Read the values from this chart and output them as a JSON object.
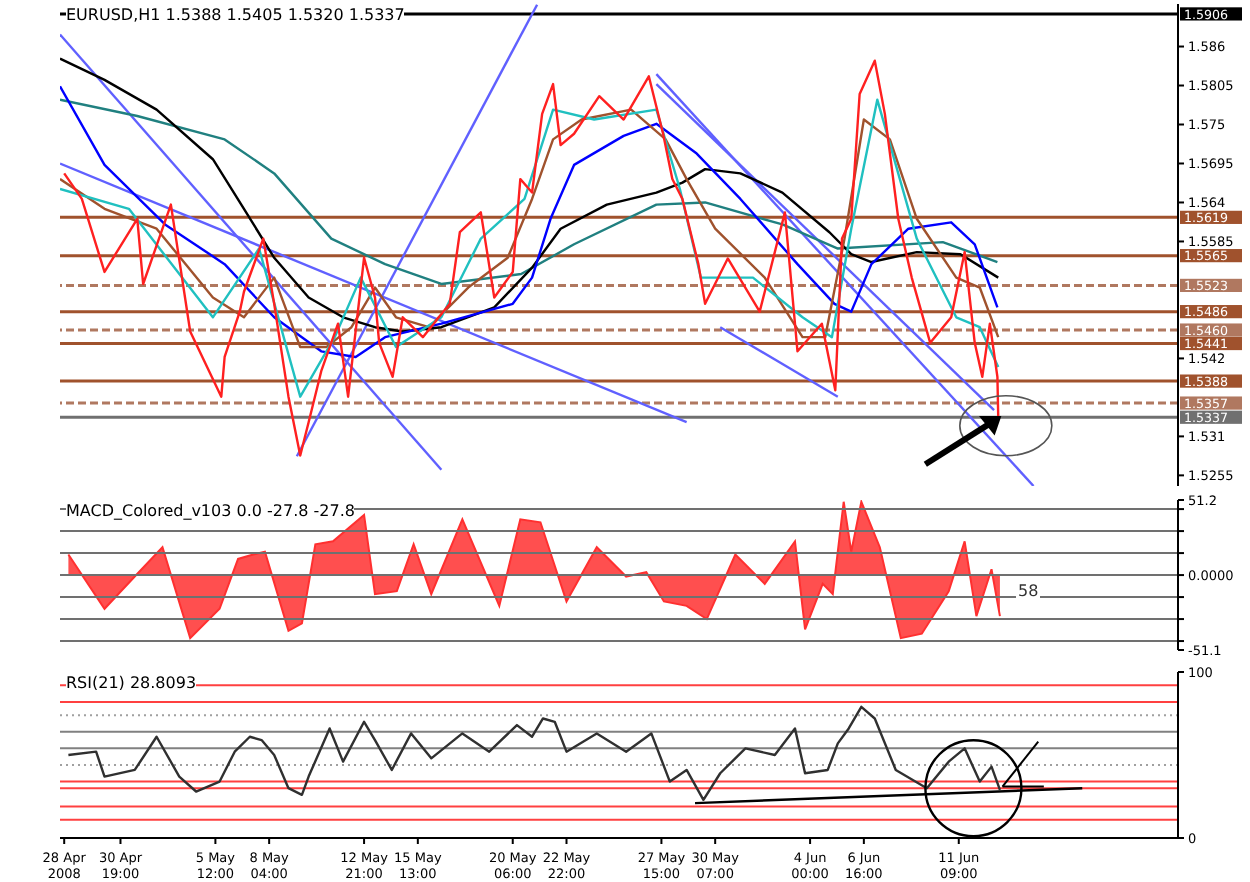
{
  "chart_data": [
    {
      "type": "line",
      "title": "EURUSD,H1 1.5388 1.5405 1.5320 1.5337",
      "xlim": [
        "2008-04-27T19:00",
        "2008-06-22T06:00"
      ],
      "ylim": [
        1.524,
        1.592
      ],
      "yticks": [
        1.5255,
        1.531,
        1.542,
        1.5585,
        1.564,
        1.5695,
        1.575,
        1.5805,
        1.586
      ],
      "tick_labels": "y",
      "ref_lines": [
        {
          "axis": "y",
          "value": 1.5906,
          "label": "1.5906",
          "color": "#000000",
          "line_style": "solid"
        },
        {
          "axis": "y",
          "value": 1.5619,
          "label": "1.5619",
          "color": "#a0522d",
          "line_style": "solid"
        },
        {
          "axis": "y",
          "value": 1.5565,
          "label": "1.5565",
          "color": "#a0522d",
          "line_style": "solid"
        },
        {
          "axis": "y",
          "value": 1.5523,
          "label": "1.5523",
          "color": "#b07860",
          "line_style": "dashed"
        },
        {
          "axis": "y",
          "value": 1.5486,
          "label": "1.5486",
          "color": "#a0522d",
          "line_style": "solid"
        },
        {
          "axis": "y",
          "value": 1.546,
          "label": "1.5460",
          "color": "#b07860",
          "line_style": "dashed"
        },
        {
          "axis": "y",
          "value": 1.5441,
          "label": "1.5441",
          "color": "#a0522d",
          "line_style": "solid"
        },
        {
          "axis": "y",
          "value": 1.5388,
          "label": "1.5388",
          "color": "#a0522d",
          "line_style": "solid"
        },
        {
          "axis": "y",
          "value": 1.5357,
          "label": "1.5357",
          "color": "#b07860",
          "line_style": "dashed"
        },
        {
          "axis": "y",
          "value": 1.5337,
          "label": "1.5337",
          "color": "#707070",
          "line_style": "solid"
        }
      ],
      "series": [
        {
          "color": "#6060ff",
          "x": [
            "2008-04-27T19:00",
            "2008-05-16T17:00"
          ],
          "values": [
            1.5877,
            1.5263
          ]
        },
        {
          "color": "#6060ff",
          "x": [
            "2008-04-27T19:00",
            "2008-05-28T21:00"
          ],
          "values": [
            1.5695,
            1.533
          ]
        },
        {
          "color": "#6060ff",
          "x": [
            "2008-05-09T13:00",
            "2008-05-21T11:00"
          ],
          "values": [
            1.5282,
            1.5919
          ]
        },
        {
          "color": "#6060ff",
          "x": [
            "2008-05-27T09:00",
            "2008-06-15T02:00"
          ],
          "values": [
            1.5821,
            1.524
          ]
        },
        {
          "color": "#6060ff",
          "x": [
            "2008-05-27T09:00",
            "2008-06-13T03:00"
          ],
          "values": [
            1.5807,
            1.5347
          ]
        },
        {
          "color": "#6060ff",
          "x": [
            "2008-05-30T13:00",
            "2008-06-05T09:00"
          ],
          "values": [
            1.5464,
            1.5366
          ]
        },
        {
          "color": "#208080",
          "x": [
            "2008-04-27T19:00",
            "2008-05-01T15:00",
            "2008-05-05T23:00",
            "2008-05-08T10:00",
            "2008-05-11T06:00",
            "2008-05-13T22:00",
            "2008-05-16T17:00",
            "2008-05-20T16:00",
            "2008-05-23T07:00",
            "2008-05-27T09:00",
            "2008-05-29T19:00",
            "2008-06-02T15:00",
            "2008-06-05T09:00",
            "2008-06-10T14:00",
            "2008-06-13T07:00"
          ],
          "values": [
            1.5785,
            1.5762,
            1.5729,
            1.5681,
            1.5589,
            1.5553,
            1.5525,
            1.5539,
            1.5581,
            1.5637,
            1.564,
            1.5609,
            1.5575,
            1.5584,
            1.5556
          ]
        },
        {
          "color": "#000000",
          "x": [
            "2008-04-27T19:00",
            "2008-04-30T00:00",
            "2008-05-02T14:00",
            "2008-05-05T09:00",
            "2008-05-06T22:00",
            "2008-05-08T10:00",
            "2008-05-10T03:00",
            "2008-05-11T20:00",
            "2008-05-13T10:00",
            "2008-05-14T19:00",
            "2008-05-16T17:00",
            "2008-05-19T08:00",
            "2008-05-21T05:00",
            "2008-05-22T15:00",
            "2008-05-24T22:00",
            "2008-05-27T09:00",
            "2008-05-28T16:00",
            "2008-05-29T19:00",
            "2008-05-31T13:00",
            "2008-06-02T15:00",
            "2008-06-04T23:00",
            "2008-06-06T01:00",
            "2008-06-07T01:00",
            "2008-06-09T07:00",
            "2008-06-11T11:00",
            "2008-06-13T08:00"
          ],
          "values": [
            1.5843,
            1.5813,
            1.5771,
            1.5701,
            1.5631,
            1.5562,
            1.5506,
            1.5478,
            1.5464,
            1.5458,
            1.5464,
            1.5492,
            1.5548,
            1.5603,
            1.5637,
            1.5654,
            1.5668,
            1.5687,
            1.5681,
            1.5654,
            1.5598,
            1.5567,
            1.5556,
            1.557,
            1.5567,
            1.5534
          ]
        },
        {
          "color": "#0000ff",
          "x": [
            "2008-04-27T19:00",
            "2008-04-30T00:00",
            "2008-05-03T00:00",
            "2008-05-05T23:00",
            "2008-05-08T10:00",
            "2008-05-10T18:00",
            "2008-05-12T11:00",
            "2008-05-13T22:00",
            "2008-05-16T17:00",
            "2008-05-20T06:00",
            "2008-05-21T05:00",
            "2008-05-22T03:00",
            "2008-05-23T07:00",
            "2008-05-25T18:00",
            "2008-05-27T09:00",
            "2008-05-29T09:00",
            "2008-05-31T13:00",
            "2008-06-03T09:00",
            "2008-06-05T05:00",
            "2008-06-06T01:00",
            "2008-06-07T01:00",
            "2008-06-08T21:00",
            "2008-06-11T00:00",
            "2008-06-12T04:00",
            "2008-06-13T07:00"
          ],
          "values": [
            1.5804,
            1.5693,
            1.5609,
            1.5553,
            1.5478,
            1.543,
            1.5422,
            1.545,
            1.5469,
            1.5497,
            1.5534,
            1.5617,
            1.5693,
            1.5734,
            1.5751,
            1.5709,
            1.5645,
            1.5553,
            1.5497,
            1.5486,
            1.5553,
            1.5603,
            1.5612,
            1.5581,
            1.5492
          ]
        },
        {
          "color": "#a0522d",
          "x": [
            "2008-04-27T19:00",
            "2008-04-30T00:00",
            "2008-05-02T14:00",
            "2008-05-05T09:00",
            "2008-05-06T22:00",
            "2008-05-08T10:00",
            "2008-05-09T17:00",
            "2008-05-11T00:00",
            "2008-05-12T06:00",
            "2008-05-13T10:00",
            "2008-05-14T11:00",
            "2008-05-16T02:00",
            "2008-05-18T01:00",
            "2008-05-20T00:00",
            "2008-05-21T05:00",
            "2008-05-22T06:00",
            "2008-05-23T16:00",
            "2008-05-26T03:00",
            "2008-05-27T20:00",
            "2008-05-28T21:00",
            "2008-05-30T07:00",
            "2008-06-01T18:00",
            "2008-06-03T15:00",
            "2008-06-04T18:00",
            "2008-06-05T17:00",
            "2008-06-06T16:00",
            "2008-06-07T23:00",
            "2008-06-09T07:00",
            "2008-06-11T06:00",
            "2008-06-12T10:00",
            "2008-06-13T08:00"
          ],
          "values": [
            1.5673,
            1.5631,
            1.5603,
            1.5506,
            1.5478,
            1.5534,
            1.5436,
            1.5436,
            1.5464,
            1.552,
            1.5478,
            1.5464,
            1.552,
            1.5562,
            1.5645,
            1.5729,
            1.5757,
            1.5771,
            1.5729,
            1.5673,
            1.5603,
            1.5534,
            1.545,
            1.545,
            1.5589,
            1.5757,
            1.5729,
            1.5617,
            1.5534,
            1.552,
            1.545
          ]
        },
        {
          "color": "#20c0c0",
          "x": [
            "2008-04-27T19:00",
            "2008-05-01T05:00",
            "2008-05-05T09:00",
            "2008-05-07T16:00",
            "2008-05-09T17:00",
            "2008-05-11T10:00",
            "2008-05-12T17:00",
            "2008-05-14T11:00",
            "2008-05-16T17:00",
            "2008-05-18T16:00",
            "2008-05-20T20:00",
            "2008-05-22T06:00",
            "2008-05-24T07:00",
            "2008-05-27T09:00",
            "2008-05-28T13:00",
            "2008-05-29T14:00",
            "2008-06-01T04:00",
            "2008-06-03T15:00",
            "2008-06-05T02:00",
            "2008-06-06T01:00",
            "2008-06-07T08:00",
            "2008-06-09T07:00",
            "2008-06-11T06:00",
            "2008-06-12T10:00",
            "2008-06-13T08:00"
          ],
          "values": [
            1.5659,
            1.5631,
            1.5478,
            1.5575,
            1.5366,
            1.545,
            1.5534,
            1.5436,
            1.5478,
            1.5589,
            1.5645,
            1.5771,
            1.5757,
            1.5771,
            1.5659,
            1.5534,
            1.5534,
            1.5478,
            1.545,
            1.5603,
            1.5785,
            1.5589,
            1.5478,
            1.5464,
            1.5408
          ]
        },
        {
          "color": "#ff2020",
          "x": [
            "2008-04-28T00:00",
            "2008-04-28T21:00",
            "2008-04-30T00:00",
            "2008-05-01T15:00",
            "2008-05-01T22:00",
            "2008-05-03T07:00",
            "2008-05-04T06:00",
            "2008-05-05T19:00",
            "2008-05-05T23:00",
            "2008-05-06T17:00",
            "2008-05-06T22:00",
            "2008-05-07T21:00",
            "2008-05-08T10:00",
            "2008-05-09T03:00",
            "2008-05-09T17:00",
            "2008-05-10T03:00",
            "2008-05-10T18:00",
            "2008-05-11T14:00",
            "2008-05-12T02:00",
            "2008-05-12T21:00",
            "2008-05-13T10:00",
            "2008-05-13T15:00",
            "2008-05-14T07:00",
            "2008-05-14T19:00",
            "2008-05-15T19:00",
            "2008-05-17T03:00",
            "2008-05-17T15:00",
            "2008-05-18T16:00",
            "2008-05-19T08:00",
            "2008-05-20T06:00",
            "2008-05-20T15:00",
            "2008-05-21T05:00",
            "2008-05-21T17:00",
            "2008-05-22T06:00",
            "2008-05-22T15:00",
            "2008-05-23T07:00",
            "2008-05-24T13:00",
            "2008-05-25T18:00",
            "2008-05-27T00:00",
            "2008-05-27T17:00",
            "2008-05-28T04:00",
            "2008-05-28T16:00",
            "2008-05-29T11:00",
            "2008-05-29T19:00",
            "2008-05-30T22:00",
            "2008-06-01T12:00",
            "2008-06-02T18:00",
            "2008-06-03T09:00",
            "2008-06-04T14:00",
            "2008-06-05T06:00",
            "2008-06-05T14:00",
            "2008-06-06T01:00",
            "2008-06-06T11:00",
            "2008-06-07T05:00",
            "2008-06-07T17:00",
            "2008-06-08T09:00",
            "2008-06-09T01:00",
            "2008-06-09T23:00",
            "2008-06-11T00:00",
            "2008-06-11T16:00",
            "2008-06-12T04:00",
            "2008-06-12T13:00",
            "2008-06-12T22:00",
            "2008-06-13T07:00",
            "2008-06-13T08:00"
          ],
          "values": [
            1.5681,
            1.5645,
            1.5542,
            1.5617,
            1.5525,
            1.5637,
            1.5458,
            1.5366,
            1.5422,
            1.5486,
            1.5514,
            1.5589,
            1.5497,
            1.5366,
            1.5283,
            1.533,
            1.5402,
            1.5469,
            1.5366,
            1.5562,
            1.5506,
            1.5442,
            1.5394,
            1.5478,
            1.545,
            1.5497,
            1.5598,
            1.5626,
            1.5506,
            1.5542,
            1.5673,
            1.5654,
            1.5765,
            1.5807,
            1.5721,
            1.5737,
            1.579,
            1.5757,
            1.5818,
            1.5737,
            1.5673,
            1.5645,
            1.5553,
            1.5497,
            1.5561,
            1.5486,
            1.5626,
            1.543,
            1.5469,
            1.5375,
            1.5589,
            1.5617,
            1.5793,
            1.584,
            1.5765,
            1.5617,
            1.5534,
            1.5442,
            1.5478,
            1.557,
            1.5442,
            1.5394,
            1.5469,
            1.5394,
            1.5337
          ]
        }
      ]
    },
    {
      "type": "area",
      "title": "MACD_Colored_v103 0.0 -27.8 -27.8",
      "annotations": [
        "58"
      ],
      "xlim": [
        "2008-04-27T19:00",
        "2008-06-22T06:00"
      ],
      "ylim": [
        -51.1,
        51.2
      ],
      "yticks": [
        -51.1,
        {
          "value": -45,
          "label": null
        },
        {
          "value": -30,
          "label": null
        },
        {
          "value": -15,
          "label": null
        },
        {
          "value": 0,
          "label": "0.0000"
        },
        {
          "value": 15,
          "label": null
        },
        {
          "value": 30,
          "label": null
        },
        {
          "value": 45,
          "label": null
        },
        51.2
      ],
      "tick_labels": "y",
      "ref_lines": [
        {
          "axis": "y",
          "value": 45,
          "color": "#707070"
        },
        {
          "axis": "y",
          "value": 30,
          "color": "#707070"
        },
        {
          "axis": "y",
          "value": 15,
          "color": "#707070"
        },
        {
          "axis": "y",
          "value": 0,
          "color": "#707070"
        },
        {
          "axis": "y",
          "value": -15,
          "color": "#707070"
        },
        {
          "axis": "y",
          "value": -30,
          "color": "#707070"
        },
        {
          "axis": "y",
          "value": -45,
          "color": "#707070"
        }
      ],
      "series": [
        {
          "color": "#ff3030",
          "x": [
            "2008-04-28T05:00",
            "2008-04-30T00:00",
            "2008-05-01T12:00",
            "2008-05-02T21:00",
            "2008-05-04T06:00",
            "2008-05-05T17:00",
            "2008-05-06T15:00",
            "2008-05-07T09:00",
            "2008-05-07T23:00",
            "2008-05-09T03:00",
            "2008-05-09T19:00",
            "2008-05-10T11:00",
            "2008-05-11T08:00",
            "2008-05-12T21:00",
            "2008-05-13T10:00",
            "2008-05-14T12:00",
            "2008-05-15T08:00",
            "2008-05-16T05:00",
            "2008-05-17T18:00",
            "2008-05-19T14:00",
            "2008-05-20T15:00",
            "2008-05-21T15:00",
            "2008-05-22T22:00",
            "2008-05-24T10:00",
            "2008-05-25T21:00",
            "2008-05-26T21:00",
            "2008-05-27T18:00",
            "2008-05-28T21:00",
            "2008-05-29T21:00",
            "2008-05-31T07:00",
            "2008-06-01T18:00",
            "2008-06-03T06:00",
            "2008-06-03T18:00",
            "2008-06-04T15:00",
            "2008-06-05T03:00",
            "2008-06-05T16:00",
            "2008-06-06T01:00",
            "2008-06-06T13:00",
            "2008-06-07T11:00",
            "2008-06-08T12:00",
            "2008-06-09T13:00",
            "2008-06-10T21:00",
            "2008-06-11T16:00",
            "2008-06-12T06:00",
            "2008-06-13T00:00",
            "2008-06-13T10:00"
          ],
          "values": [
            14,
            -23,
            -1,
            19,
            -43,
            -23,
            11,
            14,
            16,
            -38,
            -33,
            21,
            23,
            41,
            -13,
            -11,
            21,
            -13,
            38,
            -21,
            38,
            36,
            -18,
            19,
            -1,
            2,
            -18,
            -21,
            -30,
            14,
            -6,
            23,
            -37,
            -6,
            -13,
            50,
            16,
            50,
            19,
            -43,
            -40,
            -11,
            23,
            -28,
            4,
            -28
          ]
        }
      ]
    },
    {
      "type": "line",
      "title": "RSI(21) 28.8093",
      "xlim": [
        "2008-04-27T19:00",
        "2008-06-22T06:00"
      ],
      "ylim": [
        0,
        100
      ],
      "yticks": [
        0,
        100
      ],
      "xticks": [
        {
          "value": "2008-04-28",
          "label": "28 Apr 2008"
        },
        {
          "value": "2008-04-30T19:00",
          "label": "30 Apr 19:00"
        },
        {
          "value": "2008-05-05T12:00",
          "label": "5 May 12:00"
        },
        {
          "value": "2008-05-08T04:00",
          "label": "8 May 04:00"
        },
        {
          "value": "2008-05-12T21:00",
          "label": "12 May 21:00"
        },
        {
          "value": "2008-05-15T13:00",
          "label": "15 May 13:00"
        },
        {
          "value": "2008-05-20T06:00",
          "label": "20 May 06:00"
        },
        {
          "value": "2008-05-22T22:00",
          "label": "22 May 22:00"
        },
        {
          "value": "2008-05-27T15:00",
          "label": "27 May 15:00"
        },
        {
          "value": "2008-05-30T07:00",
          "label": "30 May 07:00"
        },
        {
          "value": "2008-06-04T00:00",
          "label": "4 Jun 00:00"
        },
        {
          "value": "2008-06-06T16:00",
          "label": "6 Jun 16:00"
        },
        {
          "value": "2008-06-11T09:00",
          "label": "11 Jun 09:00"
        }
      ],
      "ref_lines": [
        {
          "axis": "y",
          "value": 92,
          "color": "#ff4040"
        },
        {
          "axis": "y",
          "value": 82,
          "color": "#ff4040"
        },
        {
          "axis": "y",
          "value": 74,
          "color": "#a0a0a0",
          "line_style": "dotted"
        },
        {
          "axis": "y",
          "value": 64,
          "color": "#808080"
        },
        {
          "axis": "y",
          "value": 54,
          "color": "#808080"
        },
        {
          "axis": "y",
          "value": 44,
          "color": "#a0a0a0",
          "line_style": "dotted"
        },
        {
          "axis": "y",
          "value": 34,
          "color": "#ff4040"
        },
        {
          "axis": "y",
          "value": 30,
          "color": "#ff4040"
        },
        {
          "axis": "y",
          "value": 19,
          "color": "#ff4040"
        },
        {
          "axis": "y",
          "value": 11,
          "color": "#ff4040"
        }
      ],
      "series": [
        {
          "color": "#000000",
          "x": [
            "2008-05-29T07:00",
            "2008-06-17T12:00"
          ],
          "values": [
            21,
            30
          ]
        },
        {
          "color": "#303030",
          "x": [
            "2008-04-28T05:00",
            "2008-04-29T14:00",
            "2008-04-30T00:00",
            "2008-05-01T12:00",
            "2008-05-02T14:00",
            "2008-05-03T17:00",
            "2008-05-04T13:00",
            "2008-05-05T17:00",
            "2008-05-06T11:00",
            "2008-05-07T05:00",
            "2008-05-07T19:00",
            "2008-05-08T10:00",
            "2008-05-09T03:00",
            "2008-05-09T19:00",
            "2008-05-10T03:00",
            "2008-05-11T04:00",
            "2008-05-11T20:00",
            "2008-05-12T21:00",
            "2008-05-13T10:00",
            "2008-05-14T06:00",
            "2008-05-15T05:00",
            "2008-05-16T05:00",
            "2008-05-17T18:00",
            "2008-05-19T02:00",
            "2008-05-20T11:00",
            "2008-05-21T05:00",
            "2008-05-21T18:00",
            "2008-05-22T08:00",
            "2008-05-22T22:00",
            "2008-05-24T10:00",
            "2008-05-25T21:00",
            "2008-05-27T03:00",
            "2008-05-28T01:00",
            "2008-05-28T21:00",
            "2008-05-29T17:00",
            "2008-05-30T13:00",
            "2008-05-31T19:00",
            "2008-06-02T06:00",
            "2008-06-03T06:00",
            "2008-06-03T18:00",
            "2008-06-04T21:00",
            "2008-06-05T09:00",
            "2008-06-05T22:00",
            "2008-06-06T13:00",
            "2008-06-07T05:00",
            "2008-06-08T06:00",
            "2008-06-09T19:00",
            "2008-06-10T21:00",
            "2008-06-11T16:00",
            "2008-06-12T10:00",
            "2008-06-13T00:00",
            "2008-06-13T10:00"
          ],
          "values": [
            50,
            52,
            37,
            41,
            61,
            37,
            28,
            34,
            52,
            61,
            59,
            50,
            30,
            26,
            37,
            66,
            46,
            70,
            59,
            41,
            63,
            48,
            63,
            52,
            68,
            61,
            72,
            70,
            52,
            63,
            52,
            63,
            34,
            41,
            23,
            39,
            54,
            50,
            66,
            39,
            41,
            57,
            66,
            79,
            72,
            41,
            30,
            46,
            54,
            34,
            43,
            29
          ]
        }
      ]
    }
  ]
}
